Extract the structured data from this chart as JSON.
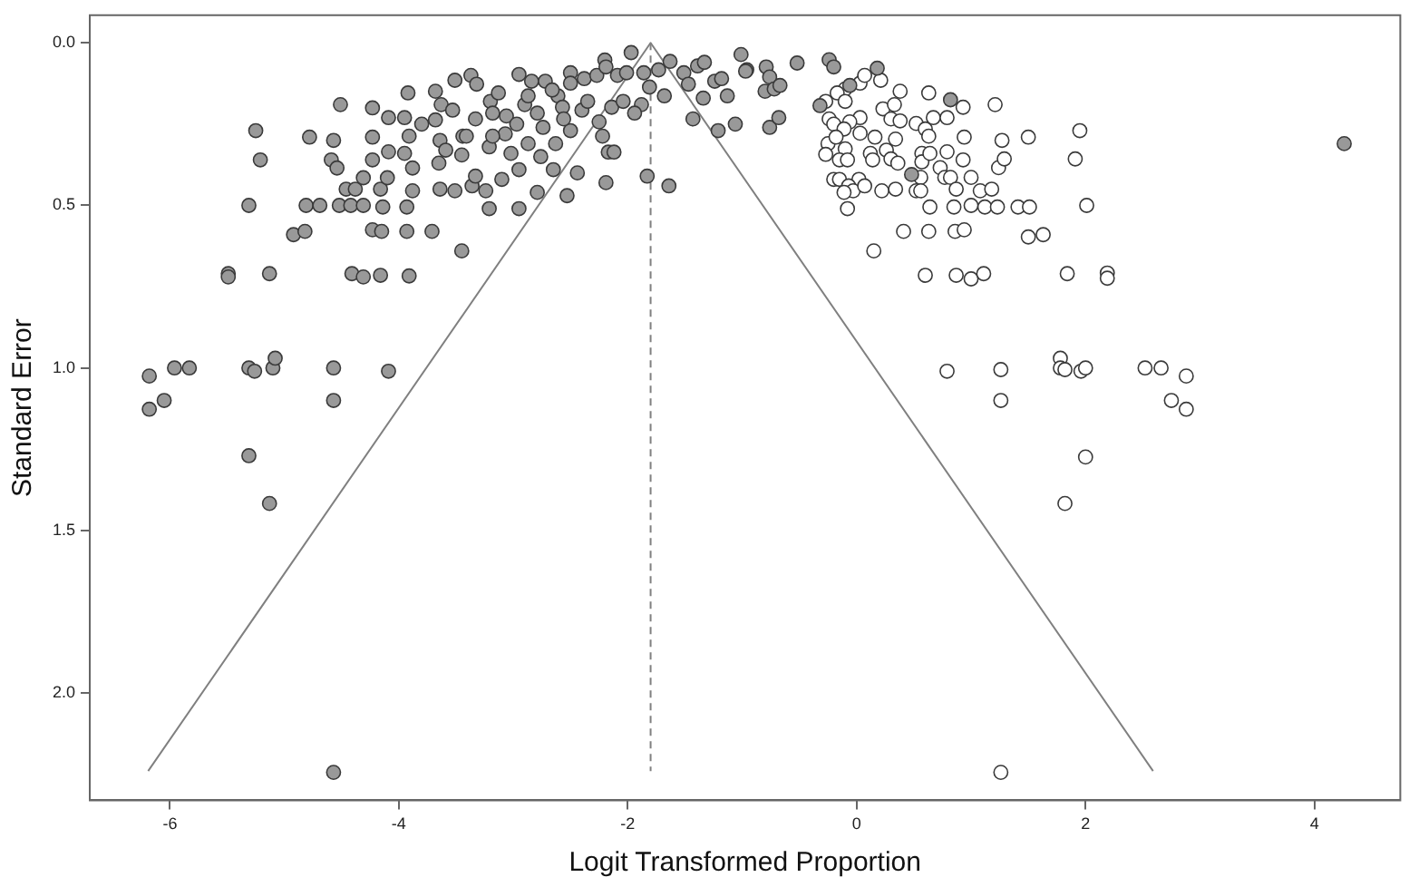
{
  "chart_data": {
    "type": "scatter",
    "xlabel": "Logit Transformed Proportion",
    "ylabel": "Standard Error",
    "xlim": [
      -6.7,
      4.75
    ],
    "ylim": [
      2.33,
      -0.085
    ],
    "xticks": [
      -6,
      -4,
      -2,
      0,
      2,
      4
    ],
    "yticks": [
      {
        "value": 0,
        "label": "0.0"
      },
      {
        "value": 0.5,
        "label": "0.5"
      },
      {
        "value": 1,
        "label": "1.0"
      },
      {
        "value": 1.5,
        "label": "1.5"
      },
      {
        "value": 2,
        "label": "2.0"
      }
    ],
    "marker": "circle",
    "series": [
      {
        "color": "#999999",
        "x": [
          -6.18,
          -5.96,
          -5.83,
          -5.31,
          -5.26,
          -5.1,
          -5.08,
          -4.57,
          -4.09,
          -6.18,
          -6.05,
          -5.31,
          -5.13,
          -4.57,
          -4.57,
          -5.49,
          -5.49,
          -5.13,
          -4.41,
          -4.31,
          -4.16,
          -3.91,
          -3.45,
          -4.92,
          -4.82,
          -4.23,
          -4.15,
          -3.93,
          -3.71,
          -5.31,
          -4.81,
          -4.69,
          -4.52,
          -4.42,
          -4.31,
          -4.14,
          -3.93,
          -3.21,
          -2.95,
          -4.46,
          -4.38,
          -4.16,
          -3.88,
          -3.64,
          -3.51,
          -3.36,
          -3.24,
          -2.79,
          -2.53,
          -2.19,
          -1.83,
          -1.64,
          -5.21,
          -4.59,
          -4.54,
          -4.31,
          -4.23,
          -4.1,
          -3.95,
          -3.88,
          -3.65,
          -3.45,
          -3.33,
          -3.1,
          -2.95,
          -2.65,
          -2.44,
          -5.25,
          -4.78,
          -4.57,
          -4.23,
          -4.09,
          -3.91,
          -3.64,
          -3.44,
          -3.21,
          -3.02,
          -2.76,
          -2.17,
          -2.12,
          -4.51,
          -4.23,
          -4.09,
          -3.92,
          -3.95,
          -3.68,
          -3.63,
          -3.68,
          -3.51,
          -3.37,
          -3.32,
          -3.53,
          -3.33,
          -3.2,
          -3.13,
          -3.06,
          -2.95,
          -2.9,
          -2.84,
          -2.72,
          -2.79,
          -2.61,
          -2.5,
          -2.5,
          -2.57,
          -2.38,
          -2.4,
          -2.27,
          -2.2,
          -2.19,
          -2.09,
          -1.97,
          -2.01,
          -1.86,
          -1.88,
          -1.81,
          -1.73,
          -1.63,
          -1.51,
          -1.39,
          -1.33,
          -1.47,
          -1.34,
          -1.24,
          -1.18,
          -1.13,
          -1.21,
          -1.06,
          -1.01,
          -0.96,
          -1.43,
          -1.68,
          -2.35,
          -2.14,
          -2.04,
          -2.25,
          -2.5,
          -2.63,
          -2.87,
          -3.07,
          -3.18,
          -3.41,
          -3.59,
          -3.8,
          -2.22,
          -1.94,
          -2.56,
          -2.74,
          -2.97,
          -3.18,
          -2.87,
          -2.66,
          -0.97,
          -0.79,
          -0.76,
          -0.8,
          -0.72,
          -0.67,
          -0.52,
          -0.24,
          -0.2,
          -0.06,
          0.18,
          -0.76,
          -0.68,
          -0.32,
          0.82,
          0.48,
          4.26
        ],
        "values": [
          1.025,
          1.0,
          1.0,
          1.0,
          1.01,
          1.0,
          0.97,
          1.0,
          1.01,
          1.127,
          1.1,
          1.27,
          1.417,
          1.1,
          2.244,
          0.71,
          0.72,
          0.71,
          0.71,
          0.72,
          0.715,
          0.717,
          0.64,
          0.59,
          0.58,
          0.575,
          0.58,
          0.58,
          0.58,
          0.5,
          0.5,
          0.5,
          0.5,
          0.5,
          0.5,
          0.505,
          0.505,
          0.51,
          0.51,
          0.45,
          0.45,
          0.45,
          0.455,
          0.45,
          0.455,
          0.44,
          0.455,
          0.46,
          0.47,
          0.43,
          0.41,
          0.44,
          0.36,
          0.36,
          0.385,
          0.415,
          0.36,
          0.415,
          0.34,
          0.385,
          0.37,
          0.345,
          0.41,
          0.42,
          0.39,
          0.39,
          0.4,
          0.27,
          0.29,
          0.3,
          0.29,
          0.335,
          0.287,
          0.3,
          0.287,
          0.32,
          0.34,
          0.35,
          0.336,
          0.336,
          0.19,
          0.2,
          0.23,
          0.154,
          0.23,
          0.149,
          0.19,
          0.237,
          0.115,
          0.1,
          0.127,
          0.207,
          0.234,
          0.18,
          0.154,
          0.225,
          0.097,
          0.19,
          0.118,
          0.118,
          0.216,
          0.163,
          0.092,
          0.124,
          0.198,
          0.11,
          0.207,
          0.1,
          0.053,
          0.074,
          0.1,
          0.03,
          0.092,
          0.092,
          0.19,
          0.136,
          0.083,
          0.057,
          0.092,
          0.071,
          0.06,
          0.127,
          0.17,
          0.118,
          0.11,
          0.163,
          0.27,
          0.25,
          0.036,
          0.083,
          0.234,
          0.163,
          0.18,
          0.198,
          0.18,
          0.243,
          0.27,
          0.31,
          0.31,
          0.28,
          0.287,
          0.287,
          0.33,
          0.25,
          0.287,
          0.216,
          0.234,
          0.26,
          0.25,
          0.216,
          0.163,
          0.145,
          0.087,
          0.074,
          0.105,
          0.149,
          0.142,
          0.131,
          0.062,
          0.052,
          0.074,
          0.131,
          0.078,
          0.26,
          0.23,
          0.193,
          0.175,
          0.405,
          0.31
        ]
      },
      {
        "color": "#ffffff",
        "x": [
          0.03,
          0.07,
          0.21,
          -0.1,
          -0.17,
          -0.27,
          -0.1,
          0.38,
          0.63,
          0.93,
          1.21,
          0.23,
          0.33,
          0.3,
          0.38,
          0.03,
          -0.24,
          -0.2,
          -0.06,
          -0.11,
          0.03,
          0.52,
          0.6,
          0.67,
          0.79,
          0.63,
          0.94,
          1.27,
          1.5,
          1.95,
          -0.25,
          -0.18,
          -0.1,
          -0.27,
          -0.15,
          -0.08,
          0.16,
          0.34,
          0.12,
          0.26,
          0.3,
          0.36,
          0.14,
          0.57,
          0.57,
          0.64,
          0.73,
          0.79,
          0.93,
          1.24,
          1.29,
          1.91,
          0.77,
          0.82,
          1.0,
          0.56,
          0.02,
          -0.2,
          -0.15,
          -0.07,
          -0.03,
          -0.11,
          0.07,
          0.22,
          0.34,
          0.52,
          0.56,
          0.87,
          1.08,
          1.18,
          -0.08,
          0.64,
          0.85,
          1.0,
          1.12,
          1.23,
          1.41,
          1.51,
          2.01,
          0.41,
          0.63,
          0.86,
          0.94,
          1.5,
          1.63,
          0.15,
          0.6,
          0.87,
          1.0,
          1.11,
          1.84,
          2.19,
          2.19,
          0.79,
          1.26,
          1.78,
          1.78,
          1.82,
          1.96,
          2.0,
          2.52,
          2.66,
          2.88,
          1.26,
          2.75,
          2.88,
          2.0,
          1.82,
          1.26
        ],
        "values": [
          0.124,
          0.1,
          0.115,
          0.142,
          0.154,
          0.18,
          0.18,
          0.149,
          0.154,
          0.198,
          0.19,
          0.203,
          0.19,
          0.234,
          0.24,
          0.23,
          0.234,
          0.25,
          0.243,
          0.265,
          0.278,
          0.248,
          0.265,
          0.23,
          0.23,
          0.287,
          0.29,
          0.3,
          0.29,
          0.27,
          0.31,
          0.29,
          0.326,
          0.343,
          0.36,
          0.36,
          0.29,
          0.296,
          0.34,
          0.33,
          0.357,
          0.37,
          0.36,
          0.34,
          0.366,
          0.34,
          0.384,
          0.335,
          0.36,
          0.384,
          0.357,
          0.357,
          0.414,
          0.414,
          0.414,
          0.414,
          0.42,
          0.42,
          0.42,
          0.44,
          0.455,
          0.46,
          0.44,
          0.455,
          0.45,
          0.455,
          0.455,
          0.45,
          0.455,
          0.45,
          0.51,
          0.505,
          0.505,
          0.5,
          0.505,
          0.505,
          0.505,
          0.505,
          0.5,
          0.58,
          0.58,
          0.58,
          0.575,
          0.597,
          0.59,
          0.64,
          0.715,
          0.715,
          0.726,
          0.71,
          0.71,
          0.708,
          0.724,
          1.01,
          1.005,
          0.97,
          1.0,
          1.005,
          1.01,
          1.0,
          1.0,
          1.0,
          1.025,
          1.1,
          1.1,
          1.127,
          1.274,
          1.417,
          2.244
        ]
      },
      {
        "type": "line",
        "color": "#808080",
        "line_style": "solid",
        "marker": "none",
        "x": [
          -6.19,
          -1.8,
          2.59
        ],
        "values": [
          2.24,
          0,
          2.24
        ]
      },
      {
        "type": "line",
        "color": "#808080",
        "line_style": "dashed",
        "marker": "none",
        "x": [
          -1.8,
          -1.8
        ],
        "values": [
          0,
          2.24
        ]
      }
    ]
  }
}
